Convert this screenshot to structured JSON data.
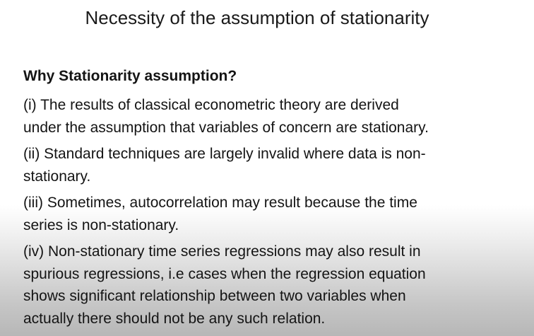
{
  "slide": {
    "title": "Necessity of the assumption of stationarity",
    "heading": "Why Stationarity assumption?",
    "points": [
      {
        "lines": [
          "(i) The results of classical econometric theory are derived",
          "under the assumption that variables of concern are stationary."
        ]
      },
      {
        "lines": [
          "(ii) Standard techniques are largely invalid where data is non-",
          "stationary."
        ]
      },
      {
        "lines": [
          "(iii) Sometimes, autocorrelation may result because the time",
          "series is non-stationary."
        ]
      },
      {
        "lines": [
          "(iv) Non-stationary time series regressions may also result in",
          "spurious regressions,  i.e cases when the regression equation",
          "shows significant relationship between two variables when",
          "actually there should not be any such relation."
        ]
      }
    ]
  }
}
